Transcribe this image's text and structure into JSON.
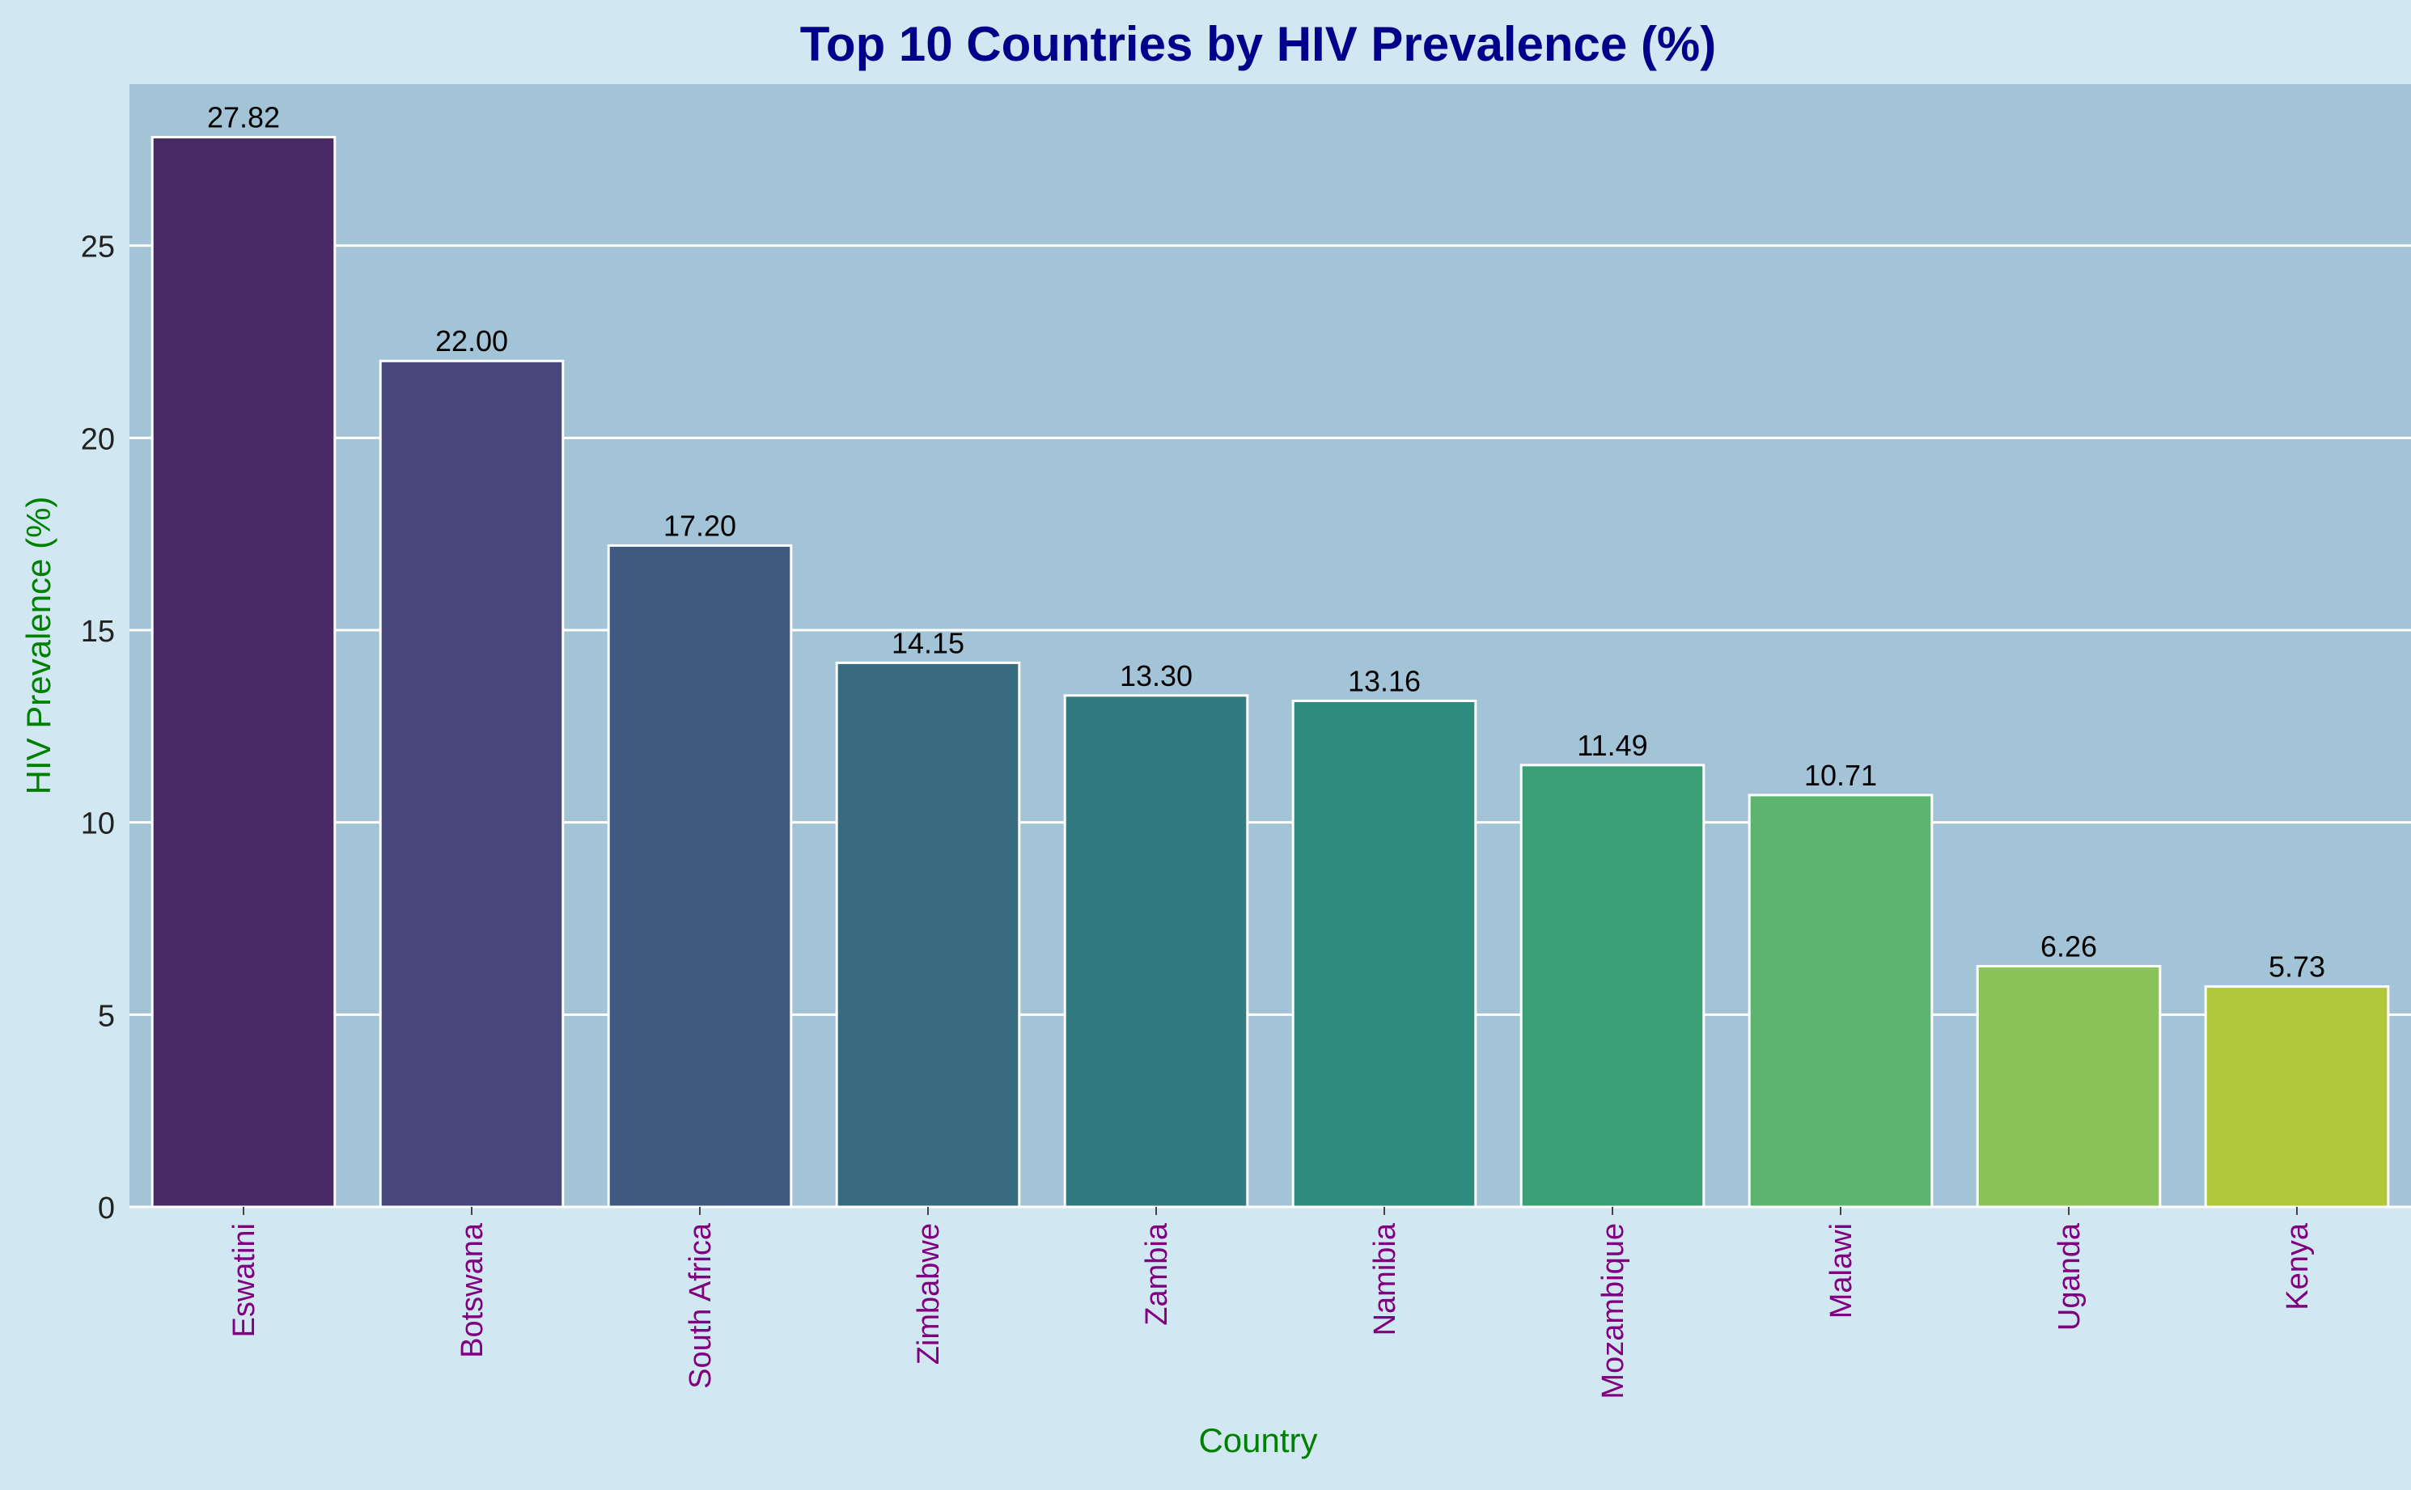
{
  "chart_data": {
    "type": "bar",
    "title": "Top 10 Countries by HIV Prevalence (%)",
    "xlabel": "Country",
    "ylabel": "HIV Prevalence (%)",
    "categories": [
      "Eswatini",
      "Botswana",
      "South Africa",
      "Zimbabwe",
      "Zambia",
      "Namibia",
      "Mozambique",
      "Malawi",
      "Uganda",
      "Kenya"
    ],
    "values": [
      27.82,
      22.0,
      17.2,
      14.15,
      13.3,
      13.16,
      11.49,
      10.71,
      6.26,
      5.73
    ],
    "value_labels": [
      "27.82",
      "22.00",
      "17.20",
      "14.15",
      "13.30",
      "13.16",
      "11.49",
      "10.71",
      "6.26",
      "5.73"
    ],
    "bar_colors": [
      "#482a66",
      "#48477b",
      "#42597f",
      "#386b80",
      "#317a80",
      "#2e8b7e",
      "#3b9f75",
      "#5db46f",
      "#8bc35a",
      "#b1c73a"
    ],
    "ylim": [
      0,
      29.2
    ],
    "yticks": [
      0,
      5,
      10,
      15,
      20,
      25
    ],
    "grid": "y",
    "legend": "none",
    "colors": {
      "figure_background": "#d1e8f2",
      "plot_background": "#a3c4d7",
      "title": "#00008b",
      "axis_label": "#008000",
      "tick_label_x": "#800080",
      "tick_label_y": "#222222",
      "value_label": "#000000",
      "grid": "#ffffff",
      "bar_edge": "#ffffff"
    }
  }
}
